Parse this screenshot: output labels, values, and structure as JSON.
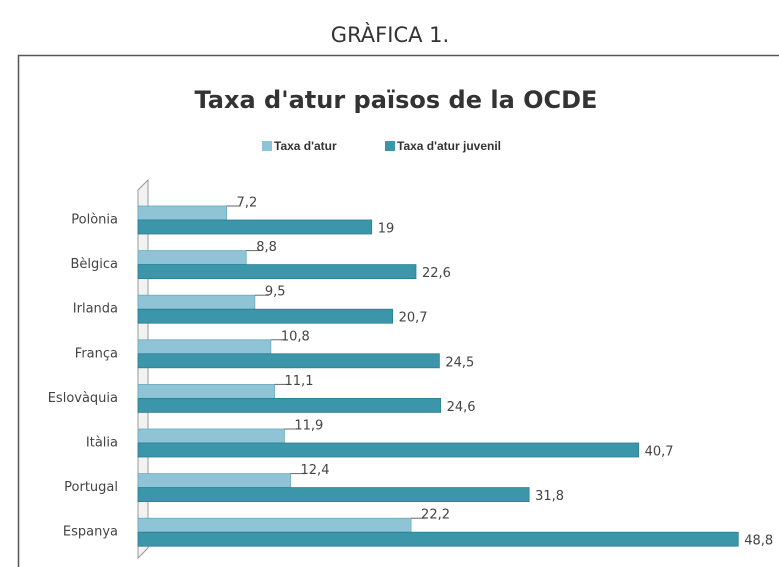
{
  "heading": "GRÀFICA 1.",
  "chart_data": {
    "type": "hbar",
    "title": "Taxa d'atur països de la OCDE",
    "categories": [
      "Polònia",
      "Bèlgica",
      "Irlanda",
      "França",
      "Eslovàquia",
      "Itàlia",
      "Portugal",
      "Espanya"
    ],
    "series": [
      {
        "name": "Taxa d'atur",
        "color": "#8ec4d6",
        "values": [
          7.2,
          8.8,
          9.5,
          10.8,
          11.1,
          11.9,
          12.4,
          22.2
        ],
        "value_labels": [
          "7,2",
          "8,8",
          "9,5",
          "10,8",
          "11,1",
          "11,9",
          "12,4",
          "22,2"
        ]
      },
      {
        "name": "Taxa d'atur juvenil",
        "color": "#3c96aa",
        "values": [
          19,
          22.6,
          20.7,
          24.5,
          24.6,
          40.7,
          31.8,
          48.8
        ],
        "value_labels": [
          "19",
          "22,6",
          "20,7",
          "24,5",
          "24,6",
          "40,7",
          "31,8",
          "48,8"
        ]
      }
    ],
    "legend": "top"
  }
}
